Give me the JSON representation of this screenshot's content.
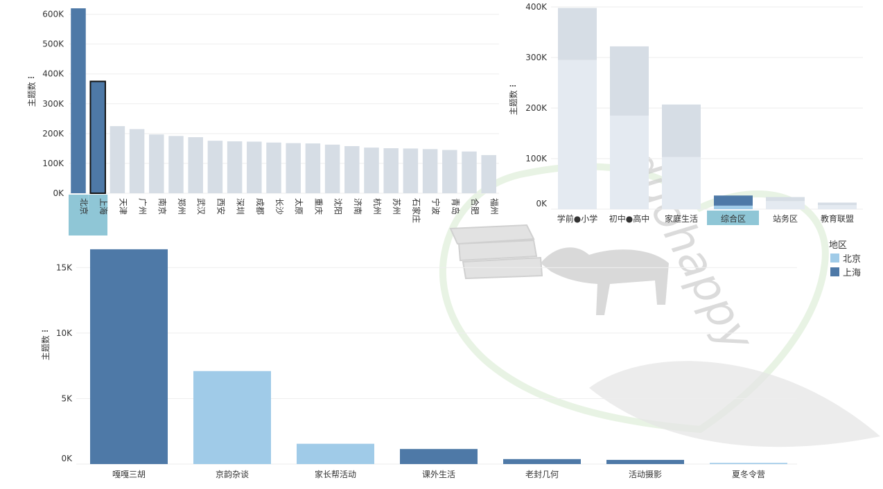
{
  "colors": {
    "dark": "#4e79a7",
    "light": "#a0cbe8",
    "faded": "#d6dde5",
    "faded_light": "#e4eaf1",
    "highlight_band": "#8fc6d6",
    "grid": "#eeeeee",
    "text": "#333333",
    "watermark": "#dcdcdc"
  },
  "watermark": {
    "text": "duohappy"
  },
  "chart_data": [
    {
      "id": "city-chart",
      "type": "bar",
      "ylabel": "主题数 ⠇",
      "ylim": [
        0,
        620000
      ],
      "yticks": [
        0,
        100000,
        200000,
        300000,
        400000,
        500000,
        600000
      ],
      "ytick_labels": [
        "0K",
        "100K",
        "200K",
        "300K",
        "400K",
        "500K",
        "600K"
      ],
      "grid": true,
      "categories": [
        "北京",
        "上海",
        "天津",
        "广州",
        "南京",
        "郑州",
        "武汉",
        "西安",
        "深圳",
        "成都",
        "长沙",
        "太原",
        "重庆",
        "沈阳",
        "济南",
        "杭州",
        "苏州",
        "石家庄",
        "宁波",
        "青岛",
        "合肥",
        "福州"
      ],
      "values": [
        620000,
        375000,
        225000,
        215000,
        197000,
        192000,
        188000,
        176000,
        174000,
        173000,
        170000,
        168000,
        167000,
        163000,
        158000,
        153000,
        151000,
        150000,
        148000,
        145000,
        140000,
        128000
      ],
      "states": [
        "selected",
        "selected-outline",
        "faded",
        "faded",
        "faded",
        "faded",
        "faded",
        "faded",
        "faded",
        "faded",
        "faded",
        "faded",
        "faded",
        "faded",
        "faded",
        "faded",
        "faded",
        "faded",
        "faded",
        "faded",
        "faded",
        "faded"
      ]
    },
    {
      "id": "category-chart",
      "type": "bar",
      "stacked": true,
      "ylabel": "主题数 ⠇",
      "ylim": [
        0,
        400000
      ],
      "yticks": [
        0,
        100000,
        200000,
        300000,
        400000
      ],
      "ytick_labels": [
        "0K",
        "100K",
        "200K",
        "300K",
        "400K"
      ],
      "grid": true,
      "categories": [
        "学前●小学",
        "初中●高中",
        "家庭生活",
        "综合区",
        "站务区",
        "教育联盟"
      ],
      "highlighted_category": "综合区",
      "series": [
        {
          "name": "北京",
          "values": [
            295000,
            185000,
            103000,
            7000,
            16000,
            8000
          ]
        },
        {
          "name": "上海",
          "values": [
            103000,
            137000,
            104000,
            20000,
            8000,
            5000
          ]
        }
      ]
    },
    {
      "id": "topic-chart",
      "type": "bar",
      "ylabel": "主题数 ⠇",
      "ylim": [
        0,
        16500
      ],
      "yticks": [
        0,
        5000,
        10000,
        15000
      ],
      "ytick_labels": [
        "0K",
        "5K",
        "10K",
        "15K"
      ],
      "grid": true,
      "categories": [
        "嘎嘎三胡",
        "京韵杂谈",
        "家长帮活动",
        "课外生活",
        "老封几何",
        "活动摄影",
        "夏冬令营"
      ],
      "values": [
        16400,
        7100,
        1550,
        1150,
        380,
        320,
        90
      ],
      "series_of_bar": [
        "上海",
        "北京",
        "北京",
        "上海",
        "上海",
        "上海",
        "北京"
      ]
    }
  ],
  "legend": {
    "title": "地区",
    "position": "right",
    "items": [
      {
        "label": "北京",
        "color": "#a0cbe8"
      },
      {
        "label": "上海",
        "color": "#4e79a7"
      }
    ]
  }
}
